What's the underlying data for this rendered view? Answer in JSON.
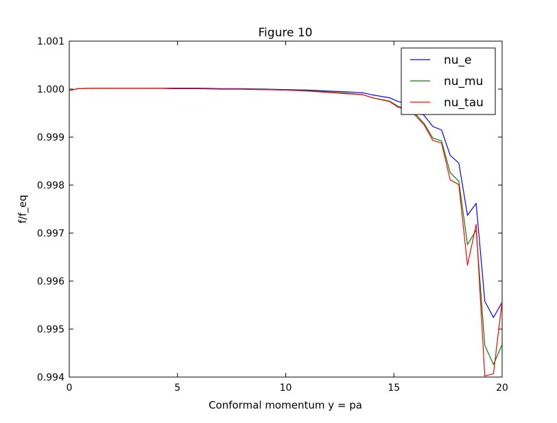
{
  "chart_data": {
    "type": "line",
    "title": "Figure 10",
    "xlabel": "Conformal momentum y = pa",
    "ylabel": "f/f_eq",
    "xlim": [
      0,
      20
    ],
    "ylim": [
      0.994,
      1.001
    ],
    "xticks": [
      0,
      5,
      10,
      15,
      20
    ],
    "xtick_labels": [
      "0",
      "5",
      "10",
      "15",
      "20"
    ],
    "yticks": [
      0.994,
      0.995,
      0.996,
      0.997,
      0.998,
      0.999,
      1.0,
      1.001
    ],
    "ytick_labels": [
      "0.994",
      "0.995",
      "0.996",
      "0.997",
      "0.998",
      "0.999",
      "1.000",
      "1.001"
    ],
    "grid": false,
    "legend_position": "top-right",
    "x": [
      0,
      0.4,
      1.2,
      2,
      3,
      4,
      5,
      6,
      7,
      8,
      9,
      10,
      11,
      12,
      13,
      13.6,
      14,
      14.8,
      15.2,
      15.6,
      16,
      16.4,
      16.8,
      17.2,
      17.6,
      18,
      18.4,
      18.8,
      19.2,
      19.6,
      20
    ],
    "series": [
      {
        "name": "nu_e",
        "color": "#0000ff",
        "values": [
          0.99997,
          1.00001,
          1.00002,
          1.00002,
          1.00002,
          1.00002,
          1.00002,
          1.00002,
          1.00001,
          1.00001,
          1.0,
          0.99999,
          0.99998,
          0.99996,
          0.99994,
          0.99992,
          0.99988,
          0.99982,
          0.99974,
          0.9997,
          0.99958,
          0.99945,
          0.99922,
          0.99915,
          0.99862,
          0.99846,
          0.99737,
          0.99762,
          0.99558,
          0.99524,
          0.99556
        ]
      },
      {
        "name": "nu_mu",
        "color": "#008000",
        "values": [
          0.99997,
          1.00001,
          1.00002,
          1.00002,
          1.00002,
          1.00002,
          1.00001,
          1.00001,
          1.0,
          1.0,
          0.99999,
          0.99998,
          0.99997,
          0.99994,
          0.99991,
          0.99988,
          0.99982,
          0.99975,
          0.99964,
          0.99958,
          0.99948,
          0.99928,
          0.99898,
          0.99892,
          0.99826,
          0.99808,
          0.99676,
          0.99706,
          0.99466,
          0.99426,
          0.99468
        ]
      },
      {
        "name": "nu_tau",
        "color": "#ff0000",
        "values": [
          0.99997,
          1.00001,
          1.00002,
          1.00002,
          1.00002,
          1.00002,
          1.00001,
          1.00001,
          1.0,
          1.0,
          0.99999,
          0.99998,
          0.99996,
          0.99993,
          0.9999,
          0.99988,
          0.99982,
          0.99974,
          0.99962,
          0.99958,
          0.99945,
          0.99925,
          0.99893,
          0.99888,
          0.99811,
          0.99801,
          0.99633,
          0.99718,
          0.99402,
          0.99407,
          0.99558
        ]
      }
    ]
  }
}
